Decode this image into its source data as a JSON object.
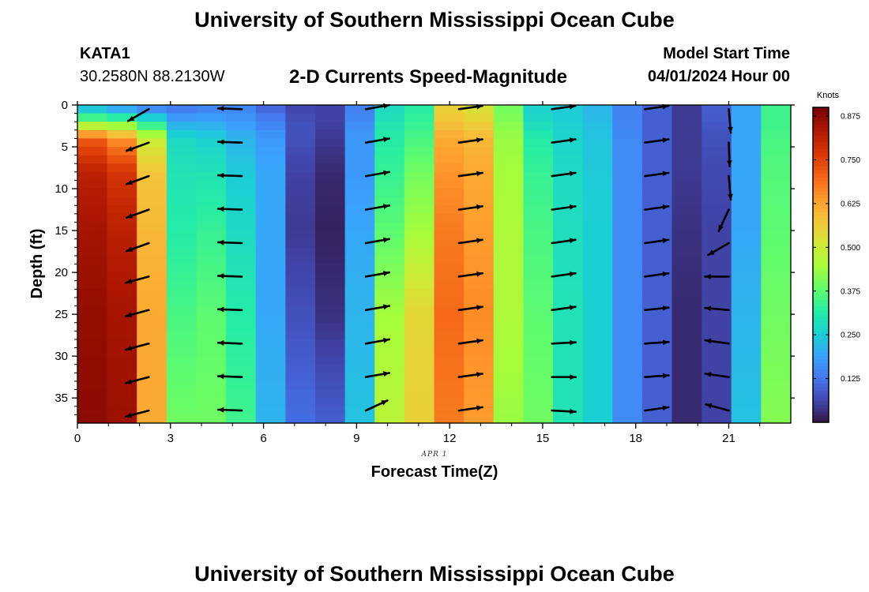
{
  "header": {
    "title": "University of Southern Mississippi Ocean Cube",
    "station_id": "KATA1",
    "coordinates": "30.2580N  88.2130W",
    "subtitle": "2-D Currents Speed-Magnitude",
    "model_start_label": "Model Start Time",
    "model_start_value": "04/01/2024 Hour 00"
  },
  "footer": {
    "title": "University of Southern Mississippi Ocean Cube"
  },
  "colors": {
    "arrow": "#000000",
    "colormap": [
      "#30123b",
      "#4145ab",
      "#4675ed",
      "#39a2fc",
      "#1bcfd4",
      "#24eca6",
      "#61fc6c",
      "#a4fc3b",
      "#d1e834",
      "#f3c63a",
      "#fe9b2d",
      "#f36315",
      "#d93806",
      "#b11901",
      "#7a0402"
    ]
  },
  "chart_data": {
    "type": "heatmap",
    "title": "2-D Currents Speed-Magnitude",
    "xlabel": "Forecast Time(Z)",
    "ylabel": "Depth (ft)",
    "date_label": "APR 1",
    "colorbar_label": "Knots",
    "x_ticks": [
      0,
      3,
      6,
      9,
      12,
      15,
      18,
      21
    ],
    "y_ticks": [
      0,
      5,
      10,
      15,
      20,
      25,
      30,
      35
    ],
    "colorbar_ticks": [
      "0.125",
      "0.250",
      "0.375",
      "0.500",
      "0.625",
      "0.750",
      "0.875"
    ],
    "xlim": [
      0,
      23
    ],
    "ylim": [
      38,
      0
    ],
    "clim": [
      0,
      0.9
    ],
    "hours": [
      0,
      1,
      2,
      3,
      4,
      5,
      6,
      7,
      8,
      9,
      10,
      11,
      12,
      13,
      14,
      15,
      16,
      17,
      18,
      19,
      20,
      21,
      22,
      23
    ],
    "speed_profiles_knots": {
      "depths_ft": [
        0,
        2,
        4,
        8,
        15,
        25,
        38
      ],
      "by_hour": [
        [
          0.2,
          0.4,
          0.72,
          0.82,
          0.85,
          0.87,
          0.88
        ],
        [
          0.15,
          0.38,
          0.65,
          0.78,
          0.82,
          0.85,
          0.86
        ],
        [
          0.12,
          0.3,
          0.5,
          0.58,
          0.6,
          0.62,
          0.62
        ],
        [
          0.12,
          0.2,
          0.28,
          0.3,
          0.32,
          0.36,
          0.4
        ],
        [
          0.14,
          0.2,
          0.26,
          0.3,
          0.34,
          0.38,
          0.4
        ],
        [
          0.15,
          0.18,
          0.22,
          0.25,
          0.28,
          0.32,
          0.35
        ],
        [
          0.1,
          0.15,
          0.18,
          0.2,
          0.2,
          0.2,
          0.22
        ],
        [
          0.06,
          0.08,
          0.08,
          0.06,
          0.05,
          0.08,
          0.12
        ],
        [
          0.06,
          0.06,
          0.05,
          0.03,
          0.02,
          0.04,
          0.1
        ],
        [
          0.14,
          0.16,
          0.18,
          0.18,
          0.2,
          0.22,
          0.24
        ],
        [
          0.28,
          0.3,
          0.32,
          0.34,
          0.38,
          0.45,
          0.48
        ],
        [
          0.32,
          0.34,
          0.36,
          0.4,
          0.45,
          0.55,
          0.56
        ],
        [
          0.55,
          0.58,
          0.62,
          0.65,
          0.68,
          0.7,
          0.68
        ],
        [
          0.52,
          0.56,
          0.6,
          0.62,
          0.64,
          0.66,
          0.64
        ],
        [
          0.4,
          0.42,
          0.44,
          0.45,
          0.46,
          0.46,
          0.44
        ],
        [
          0.26,
          0.28,
          0.32,
          0.34,
          0.36,
          0.38,
          0.4
        ],
        [
          0.25,
          0.26,
          0.27,
          0.28,
          0.29,
          0.3,
          0.3
        ],
        [
          0.22,
          0.23,
          0.24,
          0.25,
          0.26,
          0.26,
          0.26
        ],
        [
          0.15,
          0.15,
          0.16,
          0.16,
          0.16,
          0.16,
          0.16
        ],
        [
          0.1,
          0.1,
          0.1,
          0.1,
          0.1,
          0.1,
          0.1
        ],
        [
          0.05,
          0.05,
          0.05,
          0.05,
          0.04,
          0.03,
          0.03
        ],
        [
          0.1,
          0.09,
          0.08,
          0.07,
          0.06,
          0.06,
          0.06
        ],
        [
          0.2,
          0.2,
          0.2,
          0.2,
          0.2,
          0.22,
          0.24
        ],
        [
          0.35,
          0.35,
          0.36,
          0.37,
          0.38,
          0.4,
          0.42
        ]
      ]
    },
    "vector_columns": [
      {
        "hour": 2.3,
        "angles_deg": [
          210,
          200,
          200,
          200,
          200,
          195,
          195,
          195,
          195,
          195
        ]
      },
      {
        "hour": 5.3,
        "angles_deg": [
          178,
          178,
          178,
          178,
          178,
          178,
          178,
          178,
          178,
          178
        ]
      },
      {
        "hour": 9.3,
        "angles_deg": [
          10,
          10,
          10,
          10,
          10,
          10,
          10,
          10,
          10,
          25
        ]
      },
      {
        "hour": 12.3,
        "angles_deg": [
          8,
          8,
          8,
          8,
          8,
          8,
          8,
          8,
          8,
          8
        ]
      },
      {
        "hour": 15.3,
        "angles_deg": [
          8,
          8,
          8,
          8,
          8,
          8,
          8,
          3,
          0,
          -3
        ]
      },
      {
        "hour": 18.3,
        "angles_deg": [
          8,
          8,
          8,
          8,
          8,
          8,
          6,
          4,
          4,
          8
        ]
      },
      {
        "hour": 21.0,
        "angles_deg": [
          -85,
          -88,
          -85,
          -115,
          -150,
          180,
          175,
          172,
          172,
          165
        ]
      }
    ],
    "vector_depths_ft": [
      0.5,
      4.5,
      8.5,
      12.5,
      16.5,
      20.5,
      24.5,
      28.5,
      32.5,
      36.5
    ]
  }
}
